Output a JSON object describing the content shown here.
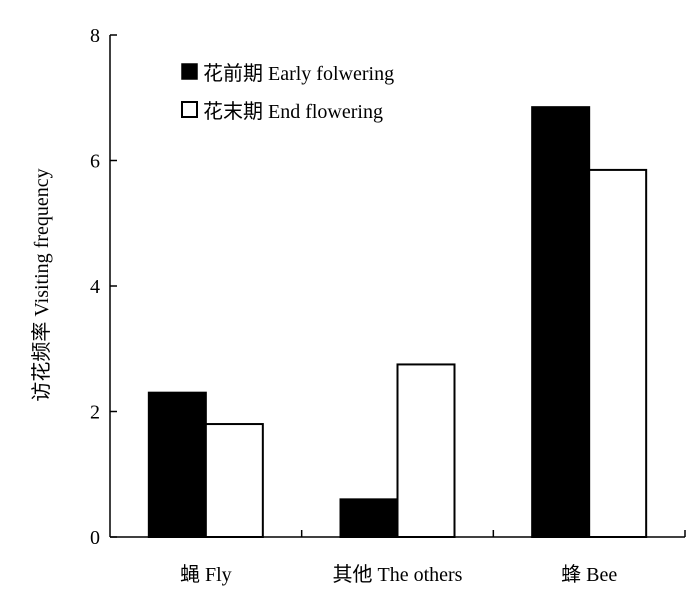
{
  "chart_data": {
    "type": "bar",
    "title": "",
    "xlabel": "",
    "ylabel": "访花频率 Visiting frequency",
    "categories": [
      "蝇 Fly",
      "其他 The others",
      "蜂 Bee"
    ],
    "series": [
      {
        "name": "花前期 Early folwering",
        "values": [
          2.3,
          0.6,
          6.85
        ],
        "color": "#000000"
      },
      {
        "name": "花末期 End flowering",
        "values": [
          1.8,
          2.75,
          5.85
        ],
        "color": "#ffffff"
      }
    ],
    "ylim": [
      0,
      8
    ],
    "yticks": [
      "0",
      "2",
      "4",
      "6",
      "8"
    ],
    "grid": false,
    "legend_position": "top-left"
  }
}
